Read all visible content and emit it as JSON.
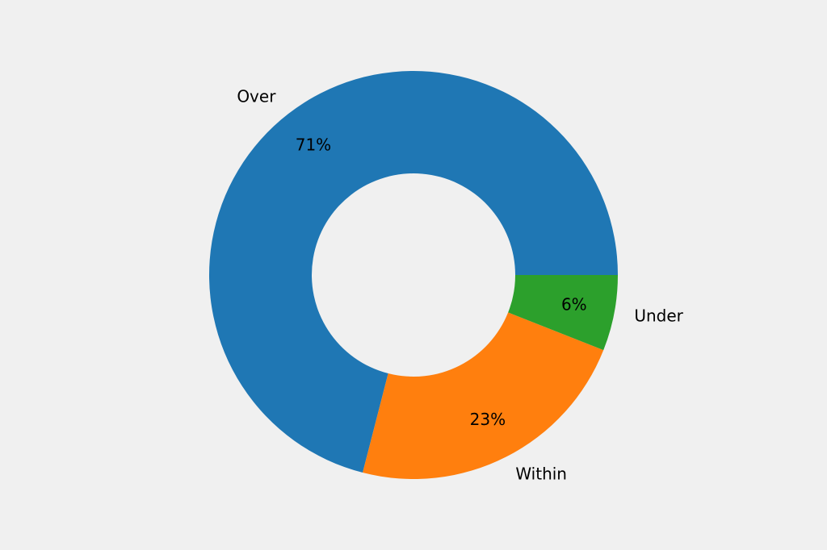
{
  "chart_data": {
    "type": "donut",
    "categories": [
      "Over",
      "Within",
      "Under"
    ],
    "values": [
      71,
      23,
      6
    ],
    "value_labels": [
      "71%",
      "23%",
      "6%"
    ],
    "colors": [
      "#1f77b4",
      "#ff7f0e",
      "#2ca02c"
    ]
  }
}
